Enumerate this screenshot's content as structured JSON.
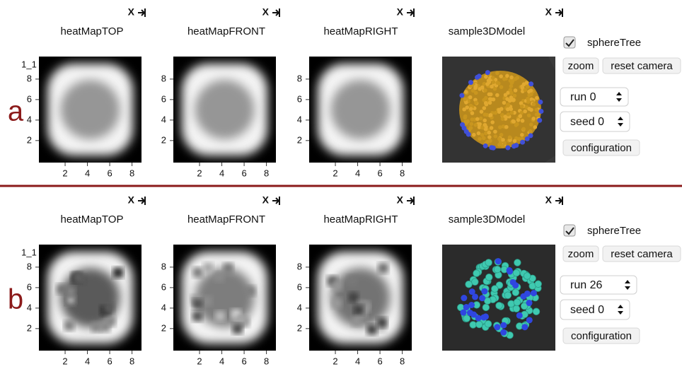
{
  "rows": [
    {
      "label": "a",
      "panels": [
        {
          "title": "heatMapTOP",
          "close": "X",
          "corner": "1_1",
          "yticks": [
            8,
            6,
            4,
            2
          ],
          "xticks": [
            2,
            4,
            6,
            8
          ]
        },
        {
          "title": "heatMapFRONT",
          "close": "X",
          "yticks": [
            8,
            6,
            4,
            2
          ],
          "xticks": [
            2,
            4,
            6,
            8
          ]
        },
        {
          "title": "heatMapRIGHT",
          "close": "X",
          "yticks": [
            8,
            6,
            4,
            2
          ],
          "xticks": [
            2,
            4,
            6,
            8
          ]
        }
      ],
      "model": {
        "title": "sample3DModel",
        "close": "X",
        "checkbox": "sphereTree",
        "zoom": "zoom",
        "reset": "reset camera",
        "run": "run 0",
        "seed": "seed 0",
        "config": "configuration"
      }
    },
    {
      "label": "b",
      "panels": [
        {
          "title": "heatMapTOP",
          "close": "X",
          "corner": "1_1",
          "yticks": [
            8,
            6,
            4,
            2
          ],
          "xticks": [
            2,
            4,
            6,
            8
          ]
        },
        {
          "title": "heatMapFRONT",
          "close": "X",
          "yticks": [
            8,
            6,
            4,
            2
          ],
          "xticks": [
            2,
            4,
            6,
            8
          ]
        },
        {
          "title": "heatMapRIGHT",
          "close": "X",
          "yticks": [
            8,
            6,
            4,
            2
          ],
          "xticks": [
            2,
            4,
            6,
            8
          ]
        }
      ],
      "model": {
        "title": "sample3DModel",
        "close": "X",
        "checkbox": "sphereTree",
        "zoom": "zoom",
        "reset": "reset camera",
        "run": "run 26",
        "seed": "seed 0",
        "config": "configuration"
      }
    }
  ]
}
